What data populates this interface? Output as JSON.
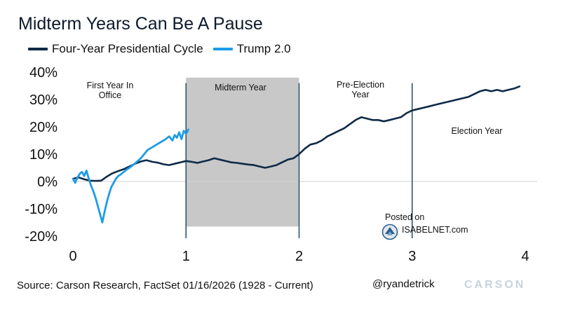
{
  "chart_data": {
    "type": "line",
    "title": "Midterm Years Can Be A Pause",
    "legend": [
      {
        "name": "Four-Year Presidential Cycle",
        "color": "#0e2a47"
      },
      {
        "name": "Trump 2.0",
        "color": "#1e9be8"
      }
    ],
    "legend_position": "top-left",
    "xlim": [
      0,
      4
    ],
    "xticks": [
      0,
      1,
      2,
      3,
      4
    ],
    "ylim": [
      -20,
      40
    ],
    "yticks": [
      -20,
      -10,
      0,
      10,
      20,
      30,
      40
    ],
    "ytick_labels": [
      "-20%",
      "-10%",
      "0%",
      "10%",
      "20%",
      "30%",
      "40%"
    ],
    "xlabel": "",
    "ylabel": "",
    "grid": "zero line only",
    "shaded_region": {
      "x0": 1,
      "x1": 2,
      "y0": -16.5,
      "y1": 38,
      "label": "Midterm Year"
    },
    "vertical_lines": [
      1,
      2,
      3
    ],
    "annotations": [
      {
        "text": "First Year In Office",
        "lines": [
          "First Year In",
          "Office"
        ]
      },
      {
        "text": "Midterm Year",
        "lines": [
          "Midterm Year"
        ]
      },
      {
        "text": "Pre-Election Year",
        "lines": [
          "Pre-Election",
          "Year"
        ]
      },
      {
        "text": "Election Year",
        "lines": [
          "Election Year"
        ]
      }
    ],
    "series": [
      {
        "name": "Four-Year Presidential Cycle",
        "color": "#0e2a47",
        "points": [
          [
            0.0,
            1.0
          ],
          [
            0.05,
            1.5
          ],
          [
            0.1,
            0.8
          ],
          [
            0.15,
            0.3
          ],
          [
            0.2,
            0.2
          ],
          [
            0.25,
            0.3
          ],
          [
            0.3,
            1.8
          ],
          [
            0.35,
            3.0
          ],
          [
            0.4,
            3.8
          ],
          [
            0.45,
            4.5
          ],
          [
            0.5,
            5.5
          ],
          [
            0.55,
            6.5
          ],
          [
            0.6,
            7.3
          ],
          [
            0.65,
            7.8
          ],
          [
            0.7,
            7.2
          ],
          [
            0.75,
            6.9
          ],
          [
            0.8,
            6.3
          ],
          [
            0.85,
            6.0
          ],
          [
            0.9,
            6.5
          ],
          [
            0.95,
            7.0
          ],
          [
            1.0,
            7.5
          ],
          [
            1.05,
            7.2
          ],
          [
            1.1,
            6.8
          ],
          [
            1.15,
            7.3
          ],
          [
            1.2,
            7.8
          ],
          [
            1.25,
            8.5
          ],
          [
            1.3,
            8.0
          ],
          [
            1.35,
            7.5
          ],
          [
            1.4,
            7.0
          ],
          [
            1.45,
            6.8
          ],
          [
            1.5,
            6.5
          ],
          [
            1.55,
            6.2
          ],
          [
            1.6,
            6.0
          ],
          [
            1.65,
            5.5
          ],
          [
            1.7,
            5.0
          ],
          [
            1.75,
            5.5
          ],
          [
            1.8,
            6.0
          ],
          [
            1.85,
            7.0
          ],
          [
            1.9,
            8.0
          ],
          [
            1.95,
            8.5
          ],
          [
            2.0,
            10.0
          ],
          [
            2.05,
            12.0
          ],
          [
            2.1,
            13.5
          ],
          [
            2.15,
            14.0
          ],
          [
            2.2,
            15.0
          ],
          [
            2.25,
            16.5
          ],
          [
            2.3,
            17.5
          ],
          [
            2.35,
            18.5
          ],
          [
            2.4,
            19.5
          ],
          [
            2.45,
            21.0
          ],
          [
            2.5,
            22.5
          ],
          [
            2.55,
            23.5
          ],
          [
            2.6,
            23.0
          ],
          [
            2.65,
            22.5
          ],
          [
            2.7,
            22.5
          ],
          [
            2.75,
            22.0
          ],
          [
            2.8,
            22.5
          ],
          [
            2.85,
            23.0
          ],
          [
            2.9,
            23.5
          ],
          [
            2.95,
            25.0
          ],
          [
            3.0,
            26.0
          ],
          [
            3.05,
            26.5
          ],
          [
            3.1,
            27.0
          ],
          [
            3.15,
            27.5
          ],
          [
            3.2,
            28.0
          ],
          [
            3.25,
            28.5
          ],
          [
            3.3,
            29.0
          ],
          [
            3.35,
            29.5
          ],
          [
            3.4,
            30.0
          ],
          [
            3.45,
            30.5
          ],
          [
            3.5,
            31.0
          ],
          [
            3.55,
            32.0
          ],
          [
            3.6,
            33.0
          ],
          [
            3.65,
            33.5
          ],
          [
            3.7,
            33.0
          ],
          [
            3.75,
            33.5
          ],
          [
            3.8,
            33.0
          ],
          [
            3.85,
            33.5
          ],
          [
            3.9,
            34.0
          ],
          [
            3.95,
            34.8
          ]
        ]
      },
      {
        "name": "Trump 2.0",
        "color": "#1e9be8",
        "points": [
          [
            0.0,
            1.0
          ],
          [
            0.02,
            -0.5
          ],
          [
            0.04,
            1.5
          ],
          [
            0.06,
            2.8
          ],
          [
            0.08,
            3.5
          ],
          [
            0.1,
            2.0
          ],
          [
            0.12,
            4.0
          ],
          [
            0.14,
            1.0
          ],
          [
            0.16,
            -1.5
          ],
          [
            0.18,
            -3.5
          ],
          [
            0.2,
            -6.0
          ],
          [
            0.22,
            -9.0
          ],
          [
            0.24,
            -12.0
          ],
          [
            0.26,
            -15.0
          ],
          [
            0.28,
            -11.0
          ],
          [
            0.3,
            -7.5
          ],
          [
            0.32,
            -4.5
          ],
          [
            0.34,
            -2.0
          ],
          [
            0.36,
            -0.5
          ],
          [
            0.38,
            1.0
          ],
          [
            0.4,
            2.0
          ],
          [
            0.42,
            2.5
          ],
          [
            0.45,
            3.5
          ],
          [
            0.48,
            4.5
          ],
          [
            0.5,
            5.0
          ],
          [
            0.53,
            6.0
          ],
          [
            0.56,
            7.0
          ],
          [
            0.6,
            8.5
          ],
          [
            0.63,
            10.0
          ],
          [
            0.66,
            11.5
          ],
          [
            0.7,
            12.5
          ],
          [
            0.74,
            13.5
          ],
          [
            0.78,
            14.5
          ],
          [
            0.82,
            15.5
          ],
          [
            0.85,
            16.5
          ],
          [
            0.88,
            15.0
          ],
          [
            0.9,
            17.0
          ],
          [
            0.92,
            16.0
          ],
          [
            0.94,
            18.0
          ],
          [
            0.96,
            15.5
          ],
          [
            0.98,
            18.5
          ],
          [
            1.0,
            17.5
          ],
          [
            1.02,
            19.0
          ]
        ]
      }
    ]
  },
  "badge": {
    "posted": "Posted on",
    "site": "ISABELNET.com"
  },
  "footer": {
    "source": "Source: Carson Research, FactSet 01/16/2026   (1928 - Current)",
    "handle": "@ryandetrick",
    "brand": "CARSON"
  }
}
